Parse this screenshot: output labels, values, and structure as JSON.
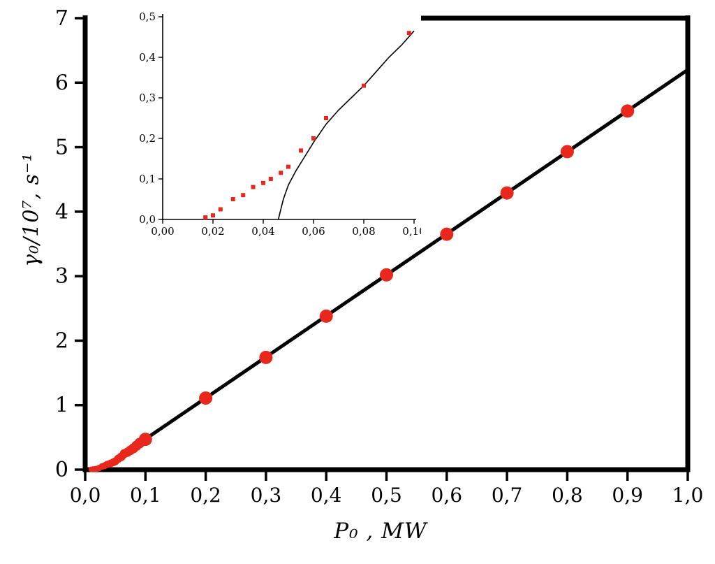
{
  "colors": {
    "background": "#ffffff",
    "axis": "#000000",
    "marker": "#e8271d",
    "line": "#000000"
  },
  "chart_data": [
    {
      "id": "main",
      "type": "scatter",
      "title": "",
      "xlabel": "P₀ , MW",
      "ylabel": "γ₀/10⁷, s⁻¹",
      "xlim": [
        0.0,
        1.0
      ],
      "ylim": [
        0,
        7
      ],
      "grid": false,
      "x_ticks": {
        "values": [
          0.0,
          0.1,
          0.2,
          0.3,
          0.4,
          0.5,
          0.6,
          0.7,
          0.8,
          0.9,
          1.0
        ],
        "labels": [
          "0,0",
          "0,1",
          "0,2",
          "0,3",
          "0,4",
          "0,5",
          "0,6",
          "0,7",
          "0,8",
          "0,9",
          "1,0"
        ]
      },
      "y_ticks": {
        "values": [
          0,
          1,
          2,
          3,
          4,
          5,
          6,
          7
        ],
        "labels": [
          "0",
          "1",
          "2",
          "3",
          "4",
          "5",
          "6",
          "7"
        ]
      },
      "series": [
        {
          "name": "measured-points-large",
          "marker": "circle",
          "points": [
            [
              0.1,
              0.47
            ],
            [
              0.2,
              1.11
            ],
            [
              0.3,
              1.74
            ],
            [
              0.4,
              2.38
            ],
            [
              0.5,
              3.02
            ],
            [
              0.6,
              3.65
            ],
            [
              0.7,
              4.29
            ],
            [
              0.8,
              4.93
            ],
            [
              0.9,
              5.56
            ]
          ]
        },
        {
          "name": "measured-points-near-origin-cluster",
          "marker": "circle",
          "points": [
            [
              0.01,
              0.005
            ],
            [
              0.013,
              0.008
            ],
            [
              0.017,
              0.01
            ],
            [
              0.02,
              0.015
            ],
            [
              0.023,
              0.025
            ],
            [
              0.028,
              0.05
            ],
            [
              0.032,
              0.06
            ],
            [
              0.036,
              0.08
            ],
            [
              0.04,
              0.09
            ],
            [
              0.043,
              0.1
            ],
            [
              0.047,
              0.115
            ],
            [
              0.05,
              0.13
            ],
            [
              0.055,
              0.17
            ],
            [
              0.06,
              0.2
            ],
            [
              0.065,
              0.25
            ],
            [
              0.07,
              0.27
            ],
            [
              0.075,
              0.3
            ],
            [
              0.08,
              0.33
            ],
            [
              0.085,
              0.37
            ],
            [
              0.09,
              0.41
            ],
            [
              0.098,
              0.46
            ]
          ]
        }
      ],
      "fit_line": [
        [
          0.06,
          0.22
        ],
        [
          1.0,
          6.2
        ]
      ]
    },
    {
      "id": "inset",
      "type": "scatter",
      "title": "",
      "xlabel": "",
      "ylabel": "",
      "xlim": [
        0.0,
        0.1
      ],
      "ylim": [
        0.0,
        0.5
      ],
      "grid": false,
      "x_ticks": {
        "values": [
          0.0,
          0.02,
          0.04,
          0.06,
          0.08,
          0.1
        ],
        "labels": [
          "0,00",
          "0,02",
          "0,04",
          "0,06",
          "0,08",
          "0,10"
        ]
      },
      "y_ticks": {
        "values": [
          0.0,
          0.1,
          0.2,
          0.3,
          0.4,
          0.5
        ],
        "labels": [
          "0,0",
          "0,1",
          "0,2",
          "0,3",
          "0,4",
          "0,5"
        ]
      },
      "series": [
        {
          "name": "measured-points-threshold-region",
          "marker": "square",
          "points": [
            [
              0.017,
              0.005
            ],
            [
              0.02,
              0.01
            ],
            [
              0.023,
              0.025
            ],
            [
              0.028,
              0.05
            ],
            [
              0.032,
              0.06
            ],
            [
              0.036,
              0.08
            ],
            [
              0.04,
              0.09
            ],
            [
              0.043,
              0.1
            ],
            [
              0.047,
              0.115
            ],
            [
              0.05,
              0.13
            ],
            [
              0.055,
              0.17
            ],
            [
              0.06,
              0.2
            ],
            [
              0.065,
              0.25
            ],
            [
              0.08,
              0.33
            ],
            [
              0.098,
              0.46
            ]
          ]
        }
      ],
      "theory_curve": [
        [
          0.046,
          0.0
        ],
        [
          0.048,
          0.05
        ],
        [
          0.05,
          0.085
        ],
        [
          0.053,
          0.12
        ],
        [
          0.056,
          0.15
        ],
        [
          0.06,
          0.19
        ],
        [
          0.065,
          0.235
        ],
        [
          0.07,
          0.27
        ],
        [
          0.075,
          0.3
        ],
        [
          0.08,
          0.33
        ],
        [
          0.085,
          0.365
        ],
        [
          0.09,
          0.4
        ],
        [
          0.095,
          0.43
        ],
        [
          0.1,
          0.465
        ]
      ]
    }
  ]
}
